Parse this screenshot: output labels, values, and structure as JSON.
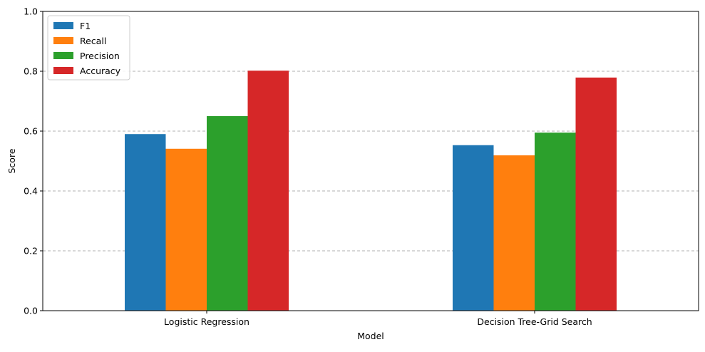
{
  "chart_data": {
    "type": "bar",
    "title": "",
    "xlabel": "Model",
    "ylabel": "Score",
    "categories": [
      "Logistic Regression",
      "Decision Tree-Grid Search"
    ],
    "series": [
      {
        "name": "F1",
        "color": "#1f77b4",
        "values": [
          0.59,
          0.553
        ]
      },
      {
        "name": "Recall",
        "color": "#ff7f0e",
        "values": [
          0.541,
          0.519
        ]
      },
      {
        "name": "Precision",
        "color": "#2ca02c",
        "values": [
          0.65,
          0.595
        ]
      },
      {
        "name": "Accuracy",
        "color": "#d62728",
        "values": [
          0.802,
          0.779
        ]
      }
    ],
    "ylim": [
      0,
      1
    ],
    "yticks": [
      "0.0",
      "0.2",
      "0.4",
      "0.6",
      "0.8",
      "1.0"
    ],
    "grid": "y-dashed",
    "legend_position": "top-left"
  }
}
